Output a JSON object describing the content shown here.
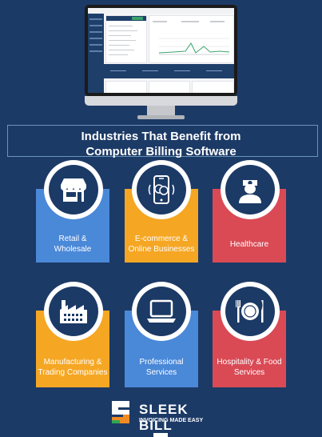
{
  "heading": {
    "line1": "Industries That Benefit from",
    "line2": "Computer Billing Software"
  },
  "industries": [
    {
      "label_line1": "Retail &",
      "label_line2": "Wholesale",
      "icon": "store-icon",
      "color": "#4a88d8"
    },
    {
      "label_line1": "E-commerce &",
      "label_line2": "Online Businesses",
      "icon": "mobile-payment-icon",
      "color": "#f5a623"
    },
    {
      "label_line1": "Healthcare",
      "label_line2": "",
      "icon": "nurse-icon",
      "color": "#d94a55"
    },
    {
      "label_line1": "Manufacturing &",
      "label_line2": "Trading Companies",
      "icon": "factory-icon",
      "color": "#f5a623"
    },
    {
      "label_line1": "Professional",
      "label_line2": "Services",
      "icon": "laptop-icon",
      "color": "#4a88d8"
    },
    {
      "label_line1": "Hospitality & Food",
      "label_line2": "Services",
      "icon": "dining-icon",
      "color": "#d94a55"
    }
  ],
  "brand": {
    "name": "SLEEK BILL",
    "tagline": "INVOICING MADE EASY"
  },
  "colors": {
    "background": "#1c3a66",
    "blue": "#4a88d8",
    "orange": "#f5a623",
    "red": "#d94a55"
  }
}
